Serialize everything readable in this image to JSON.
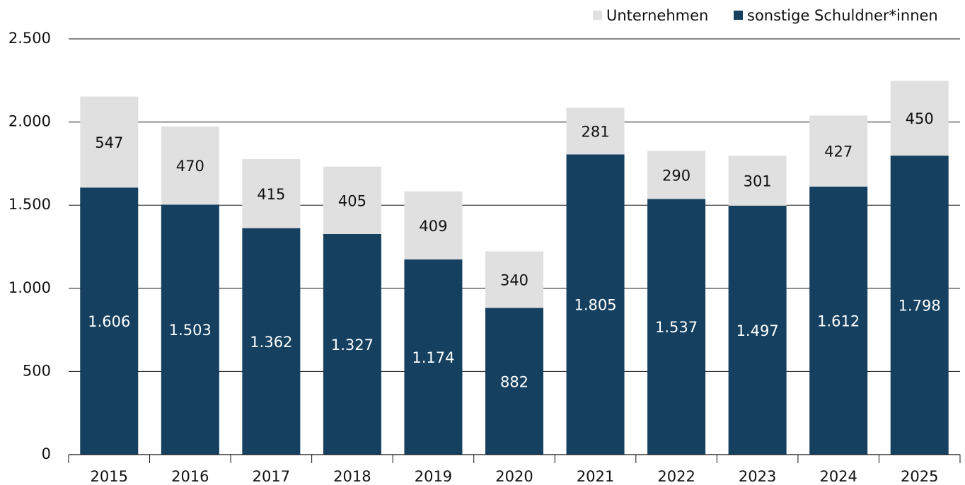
{
  "chart_data": {
    "type": "stacked_bar",
    "categories": [
      "2015",
      "2016",
      "2017",
      "2018",
      "2019",
      "2020",
      "2021",
      "2022",
      "2023",
      "2024",
      "2025"
    ],
    "series": [
      {
        "name": "sonstige Schuldner*innen",
        "color": "#15405f",
        "values": [
          1606,
          1503,
          1362,
          1327,
          1174,
          882,
          1805,
          1537,
          1497,
          1612,
          1798
        ],
        "value_labels": [
          "1.606",
          "1.503",
          "1.362",
          "1.327",
          "1.174",
          "882",
          "1.805",
          "1.537",
          "1.497",
          "1.612",
          "1.798"
        ]
      },
      {
        "name": "Unternehmen",
        "color": "#e0e0e0",
        "values": [
          547,
          470,
          415,
          405,
          409,
          340,
          281,
          290,
          301,
          427,
          450
        ]
      }
    ],
    "ylim": [
      0,
      2500
    ],
    "yticks": [
      0,
      500,
      {
        "value": 1000,
        "label": "1.000"
      },
      {
        "value": 1500,
        "label": "1.500"
      },
      {
        "value": 2000,
        "label": "2.000"
      },
      {
        "value": 2500,
        "label": "2.500"
      }
    ],
    "grid": true,
    "legend": "top-right"
  }
}
